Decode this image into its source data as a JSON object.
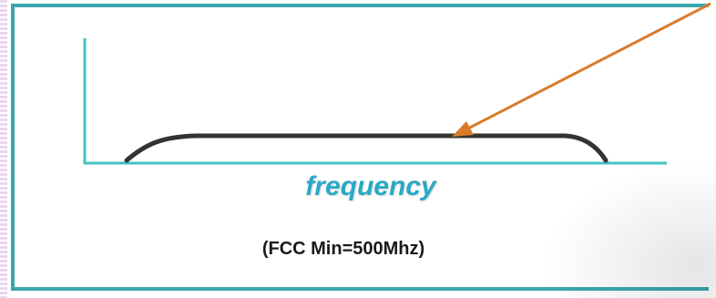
{
  "labels": {
    "x_axis": "frequency",
    "note": "(FCC Min=500Mhz)"
  },
  "colors": {
    "frame": "#3aa7ad",
    "axes": "#45c2c2",
    "curve": "#333333",
    "arrow": "#d97b2b",
    "axis_label": "#2aa9c5",
    "note_text": "#1a1a1a"
  }
}
